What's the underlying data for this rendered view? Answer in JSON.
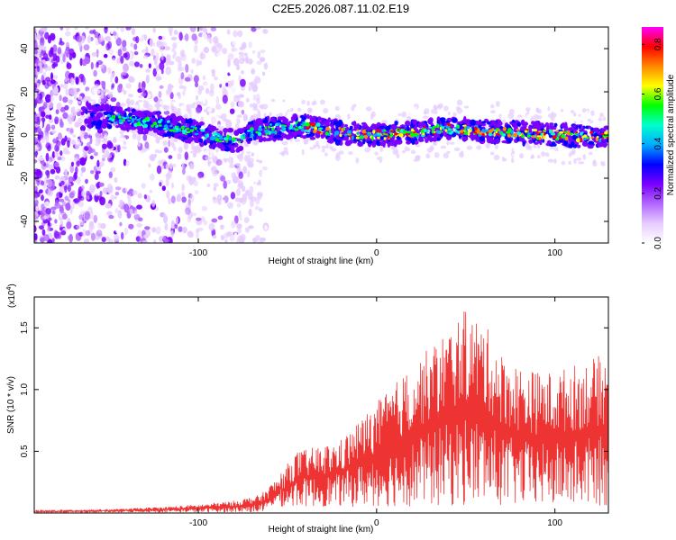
{
  "title": "C2E5.2026.087.11.02.E19",
  "chart_data": [
    {
      "type": "heatmap",
      "name": "spectrogram",
      "xlabel": "Height of straight line (km)",
      "ylabel": "Frequency (Hz)",
      "xlim": [
        -192,
        130
      ],
      "ylim": [
        -50,
        50
      ],
      "xticks": [
        -100,
        0,
        100
      ],
      "yticks": [
        -40,
        -20,
        0,
        20,
        40
      ],
      "ridge": [
        {
          "x": -160,
          "y": 9
        },
        {
          "x": -140,
          "y": 7
        },
        {
          "x": -120,
          "y": 5
        },
        {
          "x": -100,
          "y": 1
        },
        {
          "x": -80,
          "y": -3
        },
        {
          "x": -70,
          "y": 1
        },
        {
          "x": -60,
          "y": 3
        },
        {
          "x": -40,
          "y": 4
        },
        {
          "x": -20,
          "y": 1
        },
        {
          "x": 0,
          "y": 0
        },
        {
          "x": 20,
          "y": 1
        },
        {
          "x": 40,
          "y": 3
        },
        {
          "x": 60,
          "y": 2
        },
        {
          "x": 80,
          "y": 1
        },
        {
          "x": 100,
          "y": 0
        },
        {
          "x": 130,
          "y": -1
        }
      ],
      "colorbar": {
        "label": "Normalized spectral amplitude",
        "range": [
          0,
          0.87
        ],
        "ticks": [
          "0.0",
          "0.2",
          "0.4",
          "0.6",
          "0.8"
        ],
        "colors": [
          "#ffffff",
          "#e6ccff",
          "#b266ff",
          "#7a00ff",
          "#0000ff",
          "#00aaff",
          "#00ffcc",
          "#00ff00",
          "#ffff00",
          "#ff8800",
          "#ff0000",
          "#ff00ff"
        ]
      },
      "colors": {
        "noise": "#8a2be2",
        "band": "#3b00ff"
      }
    },
    {
      "type": "line",
      "name": "snr",
      "xlabel": "Height of straight line (km)",
      "ylabel": "SNR (10 * v/v)",
      "scale_label": "(x10",
      "scale_exp": "4",
      "scale_close": ")",
      "xlim": [
        -192,
        130
      ],
      "ylim": [
        0,
        1.75
      ],
      "xticks": [
        -100,
        0,
        100
      ],
      "yticks": [
        "0.5",
        "1.0",
        "1.5"
      ],
      "color": "#ee3333",
      "envelope": [
        {
          "x": -192,
          "y": 0.02
        },
        {
          "x": -150,
          "y": 0.03
        },
        {
          "x": -120,
          "y": 0.05
        },
        {
          "x": -100,
          "y": 0.07
        },
        {
          "x": -80,
          "y": 0.1
        },
        {
          "x": -65,
          "y": 0.15
        },
        {
          "x": -55,
          "y": 0.3
        },
        {
          "x": -45,
          "y": 0.5
        },
        {
          "x": -30,
          "y": 0.55
        },
        {
          "x": -20,
          "y": 0.6
        },
        {
          "x": -10,
          "y": 0.75
        },
        {
          "x": 0,
          "y": 0.9
        },
        {
          "x": 10,
          "y": 1.05
        },
        {
          "x": 20,
          "y": 1.2
        },
        {
          "x": 30,
          "y": 1.35
        },
        {
          "x": 40,
          "y": 1.5
        },
        {
          "x": 50,
          "y": 1.65
        },
        {
          "x": 60,
          "y": 1.55
        },
        {
          "x": 70,
          "y": 1.3
        },
        {
          "x": 80,
          "y": 1.2
        },
        {
          "x": 90,
          "y": 1.15
        },
        {
          "x": 100,
          "y": 1.15
        },
        {
          "x": 110,
          "y": 1.2
        },
        {
          "x": 120,
          "y": 1.25
        },
        {
          "x": 130,
          "y": 1.3
        }
      ]
    }
  ]
}
